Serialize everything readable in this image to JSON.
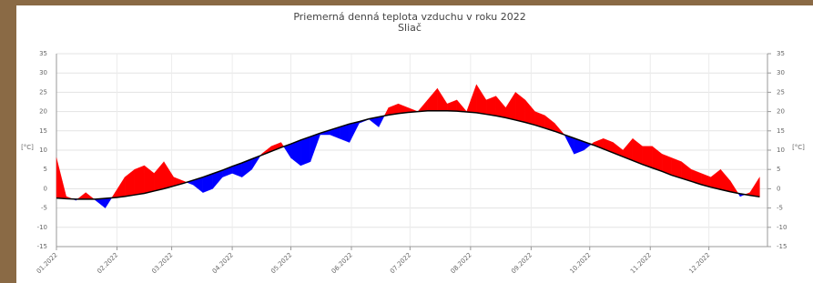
{
  "chart_data": {
    "type": "deviation-area",
    "title": "Priemerná denná teplota vzduchu v roku 2022",
    "subtitle": "Sliač",
    "ylabel": "[°C]",
    "y2label": "[°C]",
    "x": [
      1,
      6,
      11,
      16,
      21,
      26,
      31,
      36,
      41,
      46,
      51,
      56,
      61,
      66,
      71,
      76,
      81,
      86,
      91,
      96,
      101,
      106,
      111,
      116,
      121,
      126,
      131,
      136,
      141,
      146,
      151,
      156,
      161,
      166,
      171,
      176,
      181,
      186,
      191,
      196,
      201,
      206,
      211,
      216,
      221,
      226,
      231,
      236,
      241,
      246,
      251,
      256,
      261,
      266,
      271,
      276,
      281,
      286,
      291,
      296,
      301,
      306,
      311,
      316,
      321,
      326,
      331,
      336,
      341,
      346,
      351,
      356,
      361
    ],
    "series": [
      {
        "color_above": "#ff0000",
        "color_below": "#0000ff",
        "values": [
          8,
          -2,
          -3,
          -1,
          -3,
          -5,
          -1,
          3,
          5,
          6,
          4,
          7,
          3,
          2,
          1,
          -1,
          0,
          3,
          4,
          3,
          5,
          9,
          11,
          12,
          8,
          6,
          7,
          14,
          14,
          13,
          12,
          17,
          18,
          16,
          21,
          22,
          21,
          20,
          23,
          26,
          22,
          23,
          20,
          27,
          23,
          24,
          21,
          25,
          23,
          20,
          19,
          17,
          14,
          9,
          10,
          12,
          13,
          12,
          10,
          13,
          11,
          11,
          9,
          8,
          7,
          5,
          4,
          3,
          5,
          2,
          -2,
          -1,
          3
        ]
      },
      {
        "color": "#000000",
        "values": [
          -2.4,
          -2.6,
          -2.7,
          -2.7,
          -2.7,
          -2.5,
          -2.3,
          -2.0,
          -1.6,
          -1.2,
          -0.6,
          0.0,
          0.7,
          1.4,
          2.2,
          3.0,
          3.9,
          4.8,
          5.8,
          6.7,
          7.7,
          8.7,
          9.7,
          10.7,
          11.6,
          12.6,
          13.5,
          14.4,
          15.2,
          16.0,
          16.8,
          17.4,
          18.1,
          18.6,
          19.1,
          19.5,
          19.8,
          20.0,
          20.2,
          20.2,
          20.2,
          20.1,
          19.9,
          19.7,
          19.3,
          18.9,
          18.4,
          17.8,
          17.2,
          16.5,
          15.7,
          14.9,
          14.0,
          13.1,
          12.2,
          11.3,
          10.3,
          9.3,
          8.3,
          7.3,
          6.3,
          5.4,
          4.5,
          3.5,
          2.7,
          1.9,
          1.1,
          0.4,
          -0.2,
          -0.8,
          -1.3,
          -1.7,
          -2.1
        ]
      }
    ],
    "xlim": [
      1,
      365
    ],
    "xticks": [
      {
        "value": 1,
        "label": "01.2022"
      },
      {
        "value": 32,
        "label": "02.2022"
      },
      {
        "value": 60,
        "label": "03.2022"
      },
      {
        "value": 91,
        "label": "04.2022"
      },
      {
        "value": 121,
        "label": "05.2022"
      },
      {
        "value": 152,
        "label": "06.2022"
      },
      {
        "value": 182,
        "label": "07.2022"
      },
      {
        "value": 213,
        "label": "08.2022"
      },
      {
        "value": 244,
        "label": "09.2022"
      },
      {
        "value": 274,
        "label": "10.2022"
      },
      {
        "value": 305,
        "label": "11.2022"
      },
      {
        "value": 335,
        "label": "12.2022"
      }
    ],
    "ylim": [
      -15,
      35
    ],
    "yticks": [
      -15,
      -10,
      -5,
      0,
      5,
      10,
      15,
      20,
      25,
      30,
      35
    ],
    "y2lim": [
      -15,
      35
    ],
    "y2ticks": [
      -15,
      -10,
      -5,
      0,
      5,
      10,
      15,
      20,
      25,
      30,
      35
    ],
    "grid": true
  }
}
